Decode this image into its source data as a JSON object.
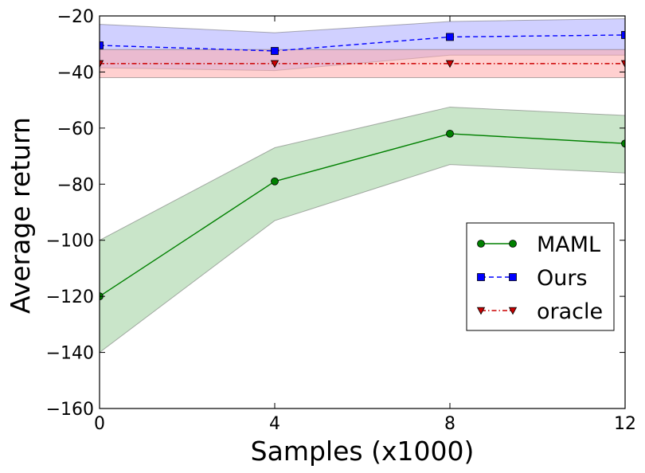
{
  "chart_data": {
    "type": "line",
    "title": "",
    "xlabel": "Samples (x1000)",
    "ylabel": "Average return",
    "xlim": [
      0,
      12
    ],
    "ylim": [
      -160,
      -20
    ],
    "xticks": [
      0,
      4,
      8,
      12
    ],
    "yticks": [
      -20,
      -40,
      -60,
      -80,
      -100,
      -120,
      -140,
      -160
    ],
    "xtick_labels": [
      "0",
      "4",
      "8",
      "12"
    ],
    "ytick_labels": [
      "−20",
      "−40",
      "−60",
      "−80",
      "−100",
      "−120",
      "−140",
      "−160"
    ],
    "grid": false,
    "legend_position": "center-right",
    "x": [
      0,
      4,
      8,
      12
    ],
    "series": [
      {
        "name": "MAML",
        "values": [
          -120,
          -79,
          -62,
          -65.5
        ],
        "lower": [
          -140,
          -93,
          -73,
          -76
        ],
        "upper": [
          -100,
          -67,
          -52.5,
          -55.5
        ],
        "color": "#008000",
        "fill": "#9ccf9c",
        "marker": "circle",
        "line_style": "solid"
      },
      {
        "name": "Ours",
        "values": [
          -30.5,
          -32.5,
          -27.5,
          -26.8
        ],
        "lower": [
          -38.5,
          -39.5,
          -34,
          -34
        ],
        "upper": [
          -23,
          -26,
          -22,
          -21
        ],
        "color": "#0000ff",
        "fill": "#aaaaff",
        "marker": "square",
        "line_style": "dashed"
      },
      {
        "name": "oracle",
        "values": [
          -37,
          -37,
          -37,
          -37
        ],
        "lower": [
          -42,
          -42,
          -42,
          -42
        ],
        "upper": [
          -32,
          -32,
          -32,
          -32
        ],
        "color": "#cc0000",
        "fill": "#ffaaaa",
        "marker": "triangle-down",
        "line_style": "dashdot"
      }
    ]
  }
}
